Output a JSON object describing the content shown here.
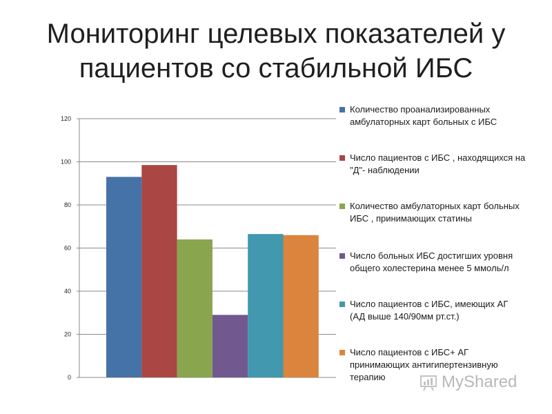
{
  "title_lines": [
    "Мониторинг целевых показателей у",
    "пациентов со стабильной ИБС"
  ],
  "watermark": "MyShared",
  "chart_data": {
    "type": "bar",
    "categories": [
      ""
    ],
    "ylim": [
      0,
      120
    ],
    "yticks": [
      0,
      20,
      40,
      60,
      80,
      100,
      120
    ],
    "grid": true,
    "legend_position": "right",
    "series": [
      {
        "name": "Количество проанализированных амбулаторных карт больных с ИБС",
        "values": [
          93
        ],
        "color": "#4572a7"
      },
      {
        "name": "Число пациентов с ИБС , находящихся на \"Д\"- наблюдении",
        "values": [
          98.5
        ],
        "color": "#aa4643"
      },
      {
        "name": "Количество амбулаторных карт больных ИБС , принимающих статины",
        "values": [
          64
        ],
        "color": "#89a54e"
      },
      {
        "name": "Число больных ИБС достигших уровня общего холестерина менее 5 ммоль/л",
        "values": [
          29
        ],
        "color": "#71588f"
      },
      {
        "name": "Число пациентов с ИБС, имеющих АГ (АД выше 140/90мм рт.ст.)",
        "values": [
          66.5
        ],
        "color": "#4198af"
      },
      {
        "name": "Число пациентов с ИБС+ АГ принимающих антигипертензивную терапию",
        "values": [
          66
        ],
        "color": "#db843d"
      }
    ]
  }
}
